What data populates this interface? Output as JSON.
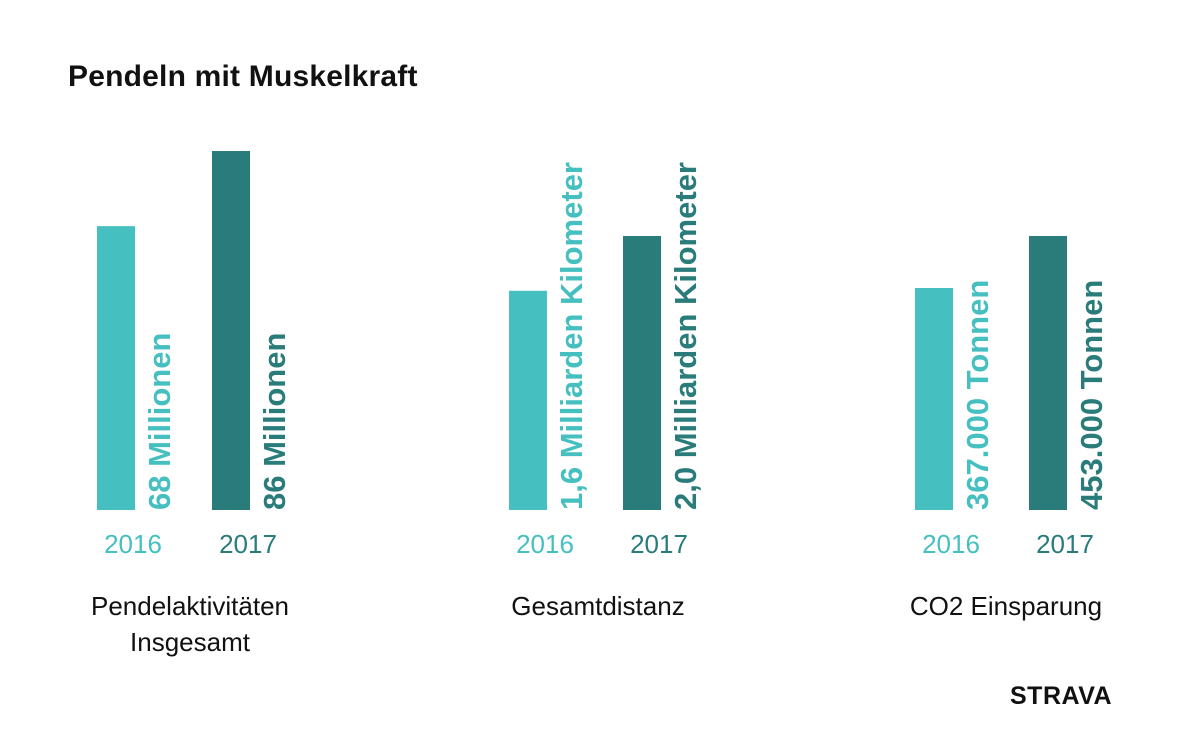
{
  "title": "Pendeln mit Muskelkraft",
  "brand": "STRAVA",
  "colors": {
    "y2016": "#45BFBF",
    "y2017": "#2A7C7B",
    "text": "#111111"
  },
  "chart_data": [
    {
      "type": "bar",
      "title": "Pendelaktivitäten Insgesamt",
      "categories": [
        "2016",
        "2017"
      ],
      "values": [
        68,
        86
      ],
      "unit": "Millionen",
      "data_labels": [
        "68 Millionen",
        "86 Millionen"
      ]
    },
    {
      "type": "bar",
      "title": "Gesamtdistanz",
      "categories": [
        "2016",
        "2017"
      ],
      "values": [
        1.6,
        2.0
      ],
      "unit": "Milliarden Kilometer",
      "data_labels": [
        "1,6 Milliarden Kilometer",
        "2,0 Milliarden Kilometer"
      ]
    },
    {
      "type": "bar",
      "title": "CO2 Einsparung",
      "categories": [
        "2016",
        "2017"
      ],
      "values": [
        367000,
        453000
      ],
      "unit": "Tonnen",
      "data_labels": [
        "367.000 Tonnen",
        "453.000 Tonnen"
      ]
    }
  ]
}
